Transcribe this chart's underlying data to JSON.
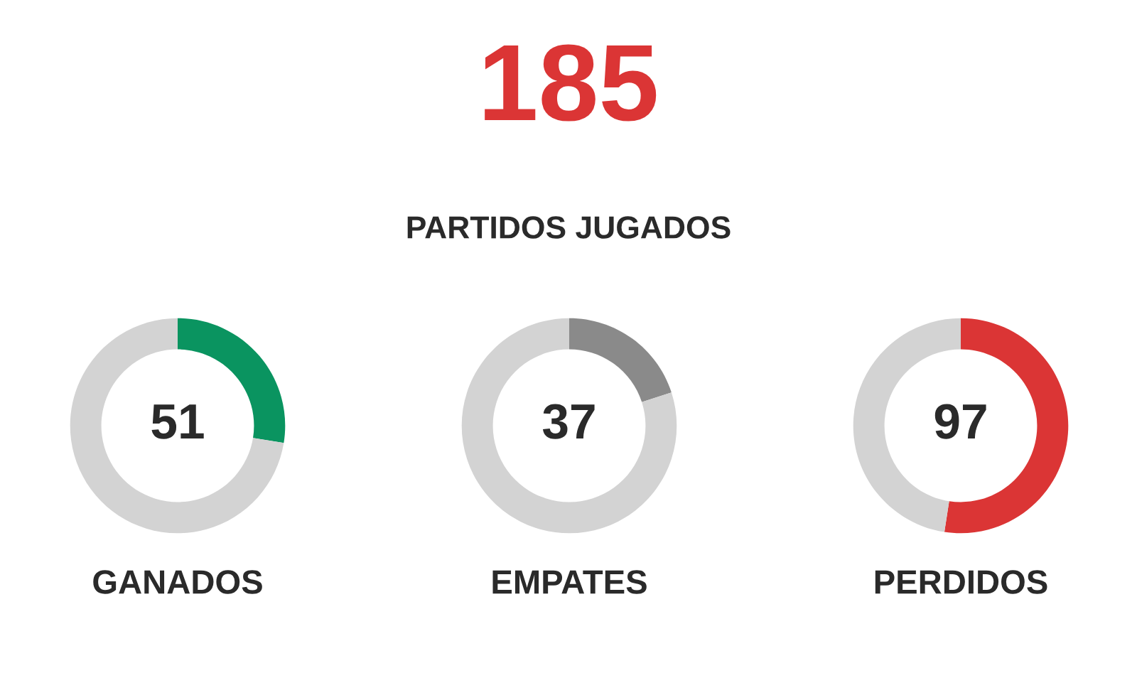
{
  "chart_data": [
    {
      "type": "other",
      "annotations": [
        "185",
        "PARTIDOS JUGADOS"
      ],
      "colors": [
        "#db3535",
        "#2a2a2a"
      ]
    },
    {
      "type": "donut",
      "title": "GANADOS",
      "categories": [
        null,
        null
      ],
      "values": [
        51,
        134
      ],
      "colors": [
        "#0a9460",
        "#d3d3d3"
      ],
      "value_labels": [
        "51",
        null
      ]
    },
    {
      "type": "donut",
      "title": "EMPATES",
      "categories": [
        null,
        null
      ],
      "values": [
        37,
        148
      ],
      "colors": [
        "#8a8a8a",
        "#d3d3d3"
      ],
      "value_labels": [
        "37",
        null
      ]
    },
    {
      "type": "donut",
      "title": "PERDIDOS",
      "categories": [
        null,
        null
      ],
      "values": [
        97,
        88
      ],
      "colors": [
        "#db3535",
        "#d3d3d3"
      ],
      "value_labels": [
        "97",
        null
      ]
    }
  ]
}
